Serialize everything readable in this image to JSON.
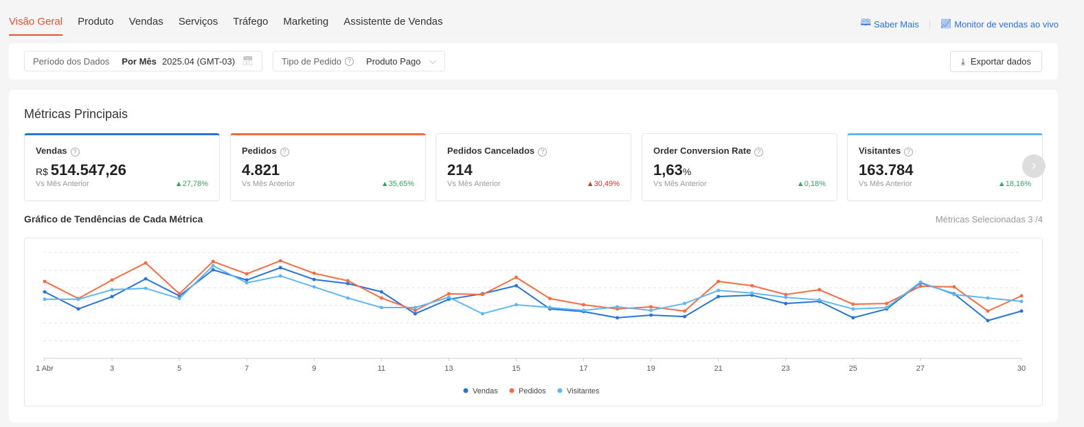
{
  "tabs": [
    "Visão Geral",
    "Produto",
    "Vendas",
    "Serviços",
    "Tráfego",
    "Marketing",
    "Assistente de Vendas"
  ],
  "links": {
    "learn": "Saber Mais",
    "monitor": "Monitor de vendas ao vivo"
  },
  "filters": {
    "period_label": "Período dos Dados",
    "period_mode": "Por Mês",
    "period_value": "2025.04 (GMT-03)",
    "order_label": "Tipo de Pedido",
    "order_value": "Produto Pago",
    "export": "Exportar dados"
  },
  "main": {
    "title": "Métricas Principais",
    "trend_title": "Gráfico de Tendências de Cada Métrica",
    "selected": "Métricas Selecionadas 3 /4",
    "cards": [
      {
        "name": "Vendas",
        "prefix": "R$ ",
        "value": "514.547,26",
        "suffix": "",
        "cmp": "Vs Mês Anterior",
        "change": "27,78%",
        "dir": "up"
      },
      {
        "name": "Pedidos",
        "prefix": "",
        "value": "4.821",
        "suffix": "",
        "cmp": "Vs Mês Anterior",
        "change": "35,65%",
        "dir": "up"
      },
      {
        "name": "Pedidos Cancelados",
        "prefix": "",
        "value": "214",
        "suffix": "",
        "cmp": "Vs Mês Anterior",
        "change": "30,49%",
        "dir": "upred"
      },
      {
        "name": "Order Conversion Rate",
        "prefix": "",
        "value": "1,63",
        "suffix": "%",
        "cmp": "Vs Mês Anterior",
        "change": "0,18%",
        "dir": "up"
      },
      {
        "name": "Visitantes",
        "prefix": "",
        "value": "163.784",
        "suffix": "",
        "cmp": "Vs Mês Anterior",
        "change": "18,16%",
        "dir": "up"
      }
    ]
  },
  "chart_data": {
    "type": "line",
    "x": [
      1,
      2,
      3,
      4,
      5,
      6,
      7,
      8,
      9,
      10,
      11,
      12,
      13,
      14,
      15,
      16,
      17,
      18,
      19,
      20,
      21,
      22,
      23,
      24,
      25,
      26,
      27,
      28,
      29,
      30
    ],
    "xticks": [
      "1 Abr",
      "3",
      "5",
      "7",
      "9",
      "11",
      "13",
      "15",
      "17",
      "19",
      "21",
      "23",
      "25",
      "27",
      "30"
    ],
    "ylim": [
      0,
      6
    ],
    "grid": true,
    "legend": "bottom",
    "series": [
      {
        "name": "Vendas",
        "color": "#2673dd",
        "values": [
          3.77,
          2.8,
          3.5,
          4.51,
          3.54,
          5.02,
          4.44,
          5.14,
          4.47,
          4.24,
          3.77,
          2.53,
          3.35,
          3.66,
          4.12,
          2.8,
          2.65,
          2.3,
          2.45,
          2.37,
          3.5,
          3.58,
          3.11,
          3.23,
          2.3,
          2.8,
          4.28,
          3.66,
          2.14,
          2.68
        ]
      },
      {
        "name": "Pedidos",
        "color": "#fa6a3f",
        "values": [
          4.36,
          3.39,
          4.44,
          5.41,
          3.66,
          5.49,
          4.79,
          5.53,
          4.82,
          4.4,
          3.42,
          2.72,
          3.66,
          3.62,
          4.59,
          3.39,
          3.04,
          2.8,
          2.92,
          2.68,
          4.36,
          4.12,
          3.62,
          3.89,
          3.07,
          3.11,
          4.09,
          4.05,
          2.68,
          3.54
        ]
      },
      {
        "name": "Visitantes",
        "color": "#5db7f5",
        "values": [
          3.35,
          3.35,
          3.89,
          3.97,
          3.39,
          5.25,
          4.28,
          4.67,
          4.05,
          3.42,
          2.88,
          2.88,
          3.46,
          2.53,
          3.04,
          2.88,
          2.72,
          2.92,
          2.72,
          3.11,
          3.85,
          3.7,
          3.46,
          3.31,
          2.8,
          2.88,
          4.32,
          3.62,
          3.42,
          3.23
        ]
      }
    ]
  }
}
